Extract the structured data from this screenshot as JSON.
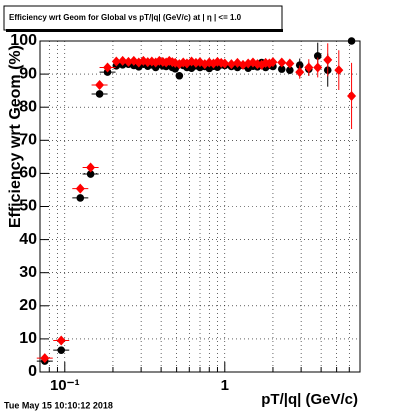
{
  "chart_data": {
    "type": "scatter",
    "title": "Efficiency wrt Geom for Global vs pT/|q| (GeV/c) at | η | <= 1.0",
    "x_label": "pT/|q| (GeV/c)",
    "y_label": "Efficiency wrt Geom (%)",
    "footer": "Tue May 15 10:10:12 2018",
    "x_log": true,
    "grid": true,
    "xlim": [
      0.07,
      7
    ],
    "ylim": [
      0,
      100
    ],
    "xticks": [
      {
        "value": 0.1,
        "label": "10⁻¹"
      },
      1
    ],
    "xminorticks": [
      0.08,
      0.09,
      0.2,
      0.3,
      0.4,
      0.5,
      0.6,
      0.7,
      0.8,
      0.9,
      2,
      3,
      4,
      5,
      6,
      7
    ],
    "yticks": [
      0,
      10,
      20,
      30,
      40,
      50,
      60,
      70,
      80,
      90,
      100
    ],
    "x": [
      0.075,
      0.095,
      0.125,
      0.145,
      0.165,
      0.185,
      0.21,
      0.23,
      0.25,
      0.27,
      0.29,
      0.31,
      0.33,
      0.35,
      0.37,
      0.39,
      0.41,
      0.43,
      0.45,
      0.47,
      0.49,
      0.52,
      0.55,
      0.58,
      0.62,
      0.66,
      0.7,
      0.75,
      0.8,
      0.85,
      0.9,
      0.95,
      1.0,
      1.1,
      1.2,
      1.3,
      1.4,
      1.5,
      1.6,
      1.7,
      1.8,
      1.9,
      2.0,
      2.27,
      2.55,
      2.94,
      3.35,
      3.81,
      4.4,
      5.16,
      6.2
    ],
    "series": [
      {
        "color": "#000000",
        "marker": "circle",
        "values": [
          3.3,
          6.6,
          52.6,
          59.8,
          84,
          90.6,
          92.5,
          92.8,
          93,
          92.6,
          92.2,
          93,
          92.4,
          92.8,
          92,
          93,
          92.5,
          92.3,
          93.2,
          92,
          91.6,
          89.5,
          92.6,
          92,
          91.8,
          92.5,
          92,
          92.3,
          91.7,
          92.4,
          92.1,
          92.8,
          92.6,
          92.3,
          92,
          92.6,
          91.8,
          92.4,
          92.2,
          93.5,
          92,
          92.7,
          92.3,
          91.5,
          91.2,
          92.7,
          91.5,
          95.5,
          91.2,
          null,
          100
        ],
        "errors": [
          0.8,
          0.8,
          1,
          1,
          0.8,
          0.6,
          0.5,
          0.5,
          0.5,
          0.5,
          0.5,
          0.5,
          0.5,
          0.5,
          0.5,
          0.5,
          0.5,
          0.5,
          0.5,
          0.5,
          0.5,
          0.5,
          0.5,
          0.5,
          0.5,
          0.5,
          0.5,
          0.5,
          0.5,
          0.5,
          0.5,
          0.5,
          0.5,
          0.5,
          0.5,
          0.5,
          0.5,
          0.5,
          0.5,
          0.5,
          0.5,
          0.6,
          0.6,
          1,
          1.2,
          2,
          2,
          4,
          5,
          null,
          0.5
        ]
      },
      {
        "color": "#ff0000",
        "marker": "diamond",
        "values": [
          4.2,
          9.5,
          55.4,
          61.8,
          86.7,
          92,
          93.8,
          94,
          93.7,
          94,
          93.5,
          94,
          93.6,
          93.8,
          93.5,
          94,
          93.7,
          93.5,
          94,
          93.6,
          93.4,
          93,
          93.5,
          93.2,
          93.8,
          93.4,
          93.6,
          93,
          93.5,
          93.2,
          93.7,
          93.4,
          93.2,
          93,
          93.4,
          92.8,
          93.2,
          93.5,
          93,
          92.8,
          93.4,
          93.2,
          93.6,
          93.5,
          93.2,
          90.6,
          92,
          92,
          94.3,
          91.2,
          83.4
        ],
        "errors": [
          0.8,
          0.8,
          1,
          1,
          0.8,
          0.6,
          0.5,
          0.5,
          0.5,
          0.5,
          0.5,
          0.5,
          0.5,
          0.5,
          0.5,
          0.5,
          0.5,
          0.5,
          0.5,
          0.5,
          0.5,
          0.5,
          0.5,
          0.5,
          0.5,
          0.5,
          0.5,
          0.5,
          0.5,
          0.5,
          0.5,
          0.5,
          0.5,
          0.5,
          0.5,
          0.5,
          0.5,
          0.5,
          0.5,
          0.5,
          0.5,
          0.6,
          0.6,
          1,
          1.2,
          2,
          2.5,
          3,
          5,
          6,
          10
        ]
      }
    ]
  }
}
